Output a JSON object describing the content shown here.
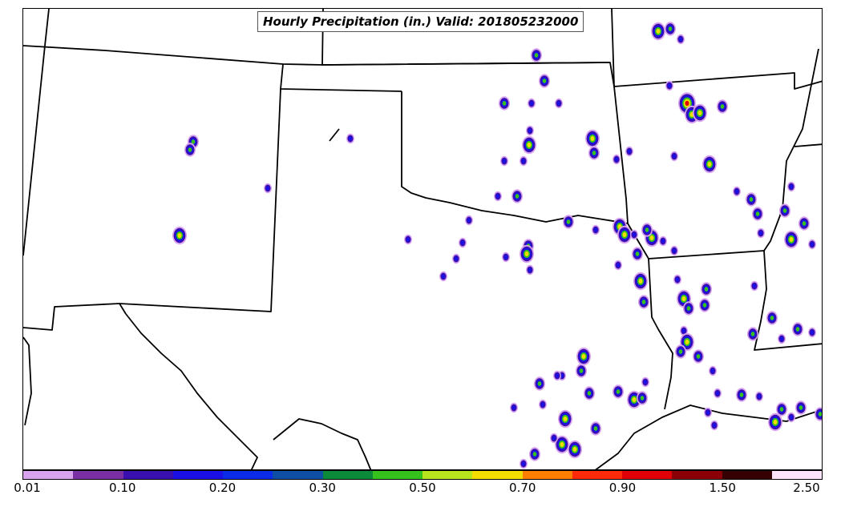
{
  "title": "Hourly Precipitation (in.) Valid: 201805232000",
  "colorbar": {
    "colors": [
      "#d7a3ee",
      "#7b2fa5",
      "#3a0fb0",
      "#1a10e6",
      "#0a2ce8",
      "#0e4ea5",
      "#0b8a3a",
      "#35c21c",
      "#b7e41c",
      "#f5dd00",
      "#ff7e00",
      "#ff2a0a",
      "#e00008",
      "#8a0006",
      "#360002",
      "#ffe2fb"
    ],
    "tick_labels": [
      "0.01",
      "0.10",
      "0.20",
      "0.30",
      "0.50",
      "0.70",
      "0.90",
      "1.50",
      "2.50"
    ]
  }
}
